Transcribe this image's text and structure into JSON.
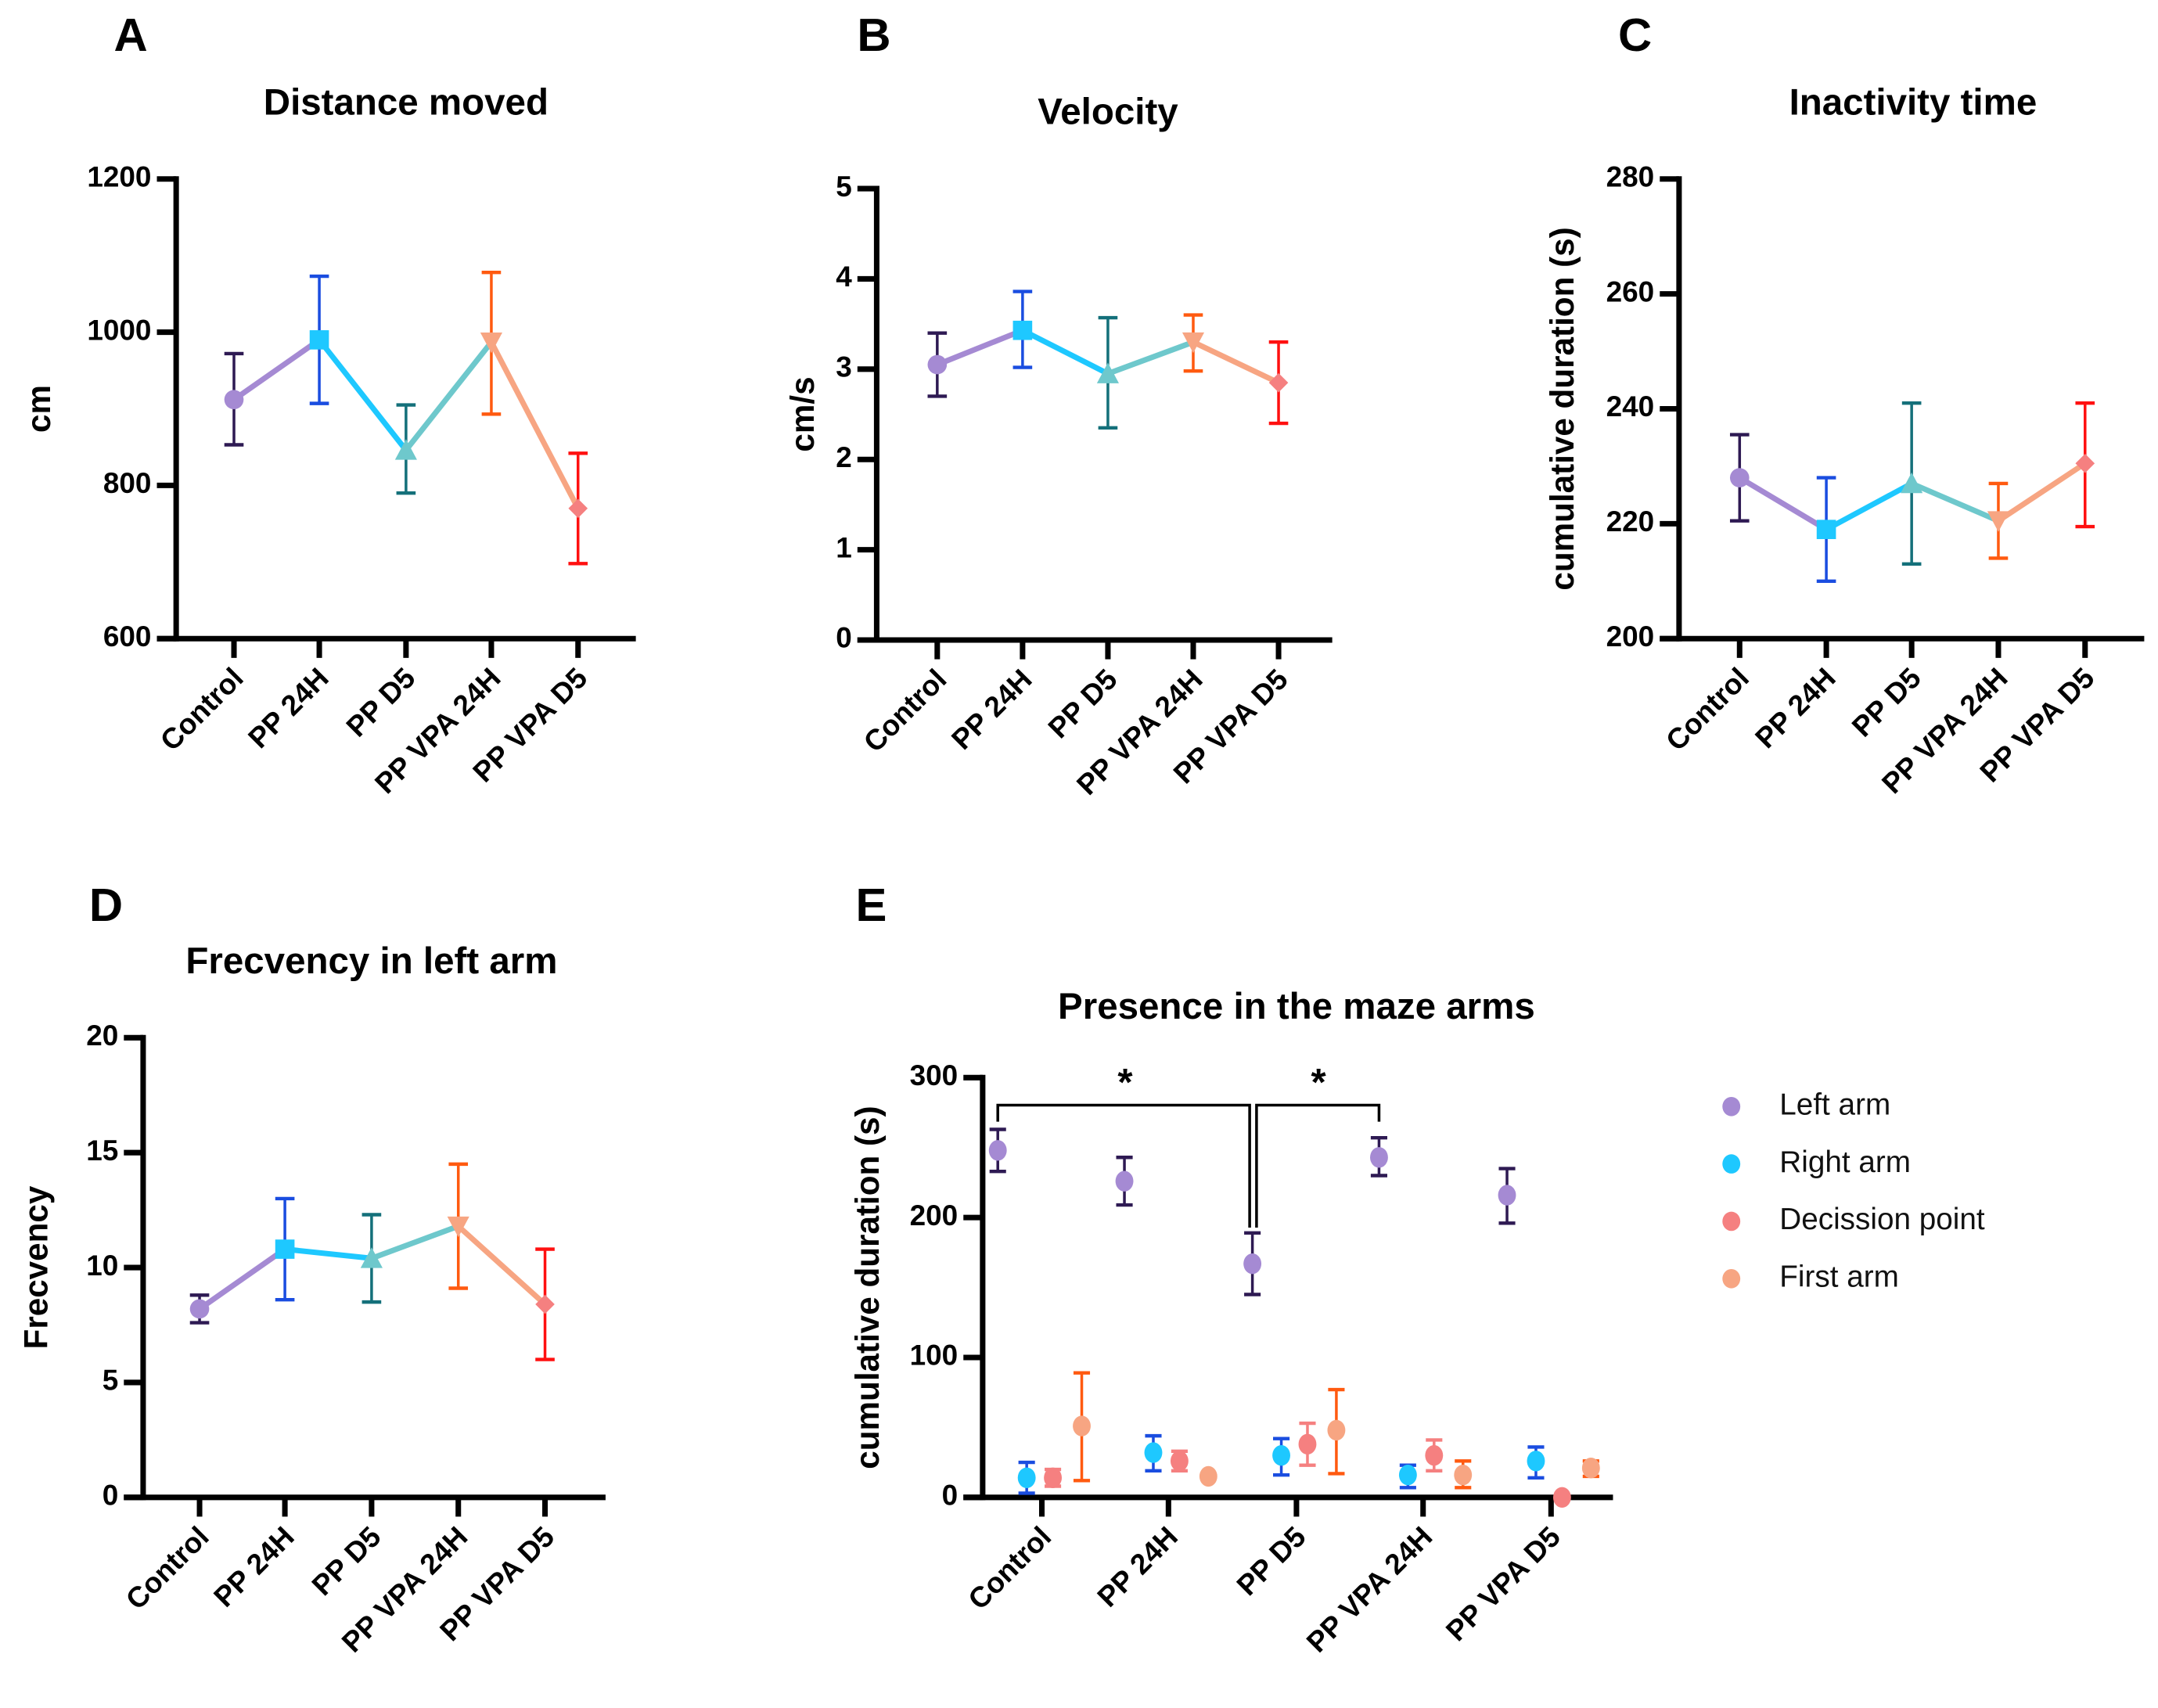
{
  "categories": [
    "Control",
    "PP 24H",
    "PP D5",
    "PP VPA 24H",
    "PP VPA D5"
  ],
  "group_colors": {
    "marker": [
      "#a58ad3",
      "#1ec8ff",
      "#6ec8cc",
      "#f7a582",
      "#f58080"
    ],
    "error": [
      "#2e1a53",
      "#1a4de0",
      "#14707a",
      "#ff5a10",
      "#ff1010"
    ]
  },
  "chart_data": [
    {
      "letter": "A",
      "type": "line",
      "title": "Distance moved",
      "ylabel": "cm",
      "ylim": [
        600,
        1200
      ],
      "yticks": [
        600,
        800,
        1000,
        1200
      ],
      "markers": [
        "circle",
        "square",
        "triangle-up",
        "triangle-down",
        "diamond"
      ],
      "values": [
        912,
        990,
        846,
        987,
        770
      ],
      "err_low": [
        853,
        907,
        790,
        893,
        698
      ],
      "err_high": [
        972,
        1073,
        905,
        1078,
        842
      ]
    },
    {
      "letter": "B",
      "type": "line",
      "title": "Velocity",
      "ylabel": "cm/s",
      "ylim": [
        0,
        5
      ],
      "yticks": [
        0,
        1,
        2,
        3,
        4,
        5
      ],
      "markers": [
        "circle",
        "square",
        "triangle-up",
        "triangle-down",
        "diamond"
      ],
      "values": [
        3.05,
        3.43,
        2.95,
        3.3,
        2.85
      ],
      "err_low": [
        2.7,
        3.02,
        2.35,
        2.98,
        2.4
      ],
      "err_high": [
        3.4,
        3.86,
        3.57,
        3.6,
        3.3
      ]
    },
    {
      "letter": "C",
      "type": "line",
      "title": "Inactivity time",
      "ylabel": "cumulative duration (s)",
      "ylim": [
        200,
        280
      ],
      "yticks": [
        200,
        220,
        240,
        260,
        280
      ],
      "markers": [
        "circle",
        "square",
        "triangle-up",
        "triangle-down",
        "diamond"
      ],
      "values": [
        228,
        219,
        227,
        220.5,
        230.5
      ],
      "err_low": [
        220.5,
        210,
        213,
        214,
        219.5
      ],
      "err_high": [
        235.5,
        228,
        241,
        227,
        241
      ]
    },
    {
      "letter": "D",
      "type": "line",
      "title": "Frecvency in left arm",
      "ylabel": "Frecvency",
      "ylim": [
        0,
        20
      ],
      "yticks": [
        0,
        5,
        10,
        15,
        20
      ],
      "markers": [
        "circle",
        "square",
        "triangle-up",
        "triangle-down",
        "diamond"
      ],
      "values": [
        8.2,
        10.8,
        10.4,
        11.8,
        8.4
      ],
      "err_low": [
        7.6,
        8.6,
        8.5,
        9.1,
        6.0
      ],
      "err_high": [
        8.8,
        13.0,
        12.3,
        14.5,
        10.8
      ]
    },
    {
      "letter": "E",
      "type": "scatter",
      "title": "Presence in the maze arms",
      "ylabel": "cumulative duration (s)",
      "ylim": [
        0,
        300
      ],
      "yticks": [
        0,
        100,
        200,
        300
      ],
      "legend": "right",
      "series": [
        {
          "name": "Left arm",
          "color": "#a58ad3",
          "error_color": "#2e1a53",
          "values": [
            248,
            226,
            167,
            243,
            216
          ],
          "err_low": [
            233,
            209,
            145,
            230,
            196
          ],
          "err_high": [
            263,
            243,
            189,
            257,
            235
          ]
        },
        {
          "name": "Right arm",
          "color": "#1ec8ff",
          "error_color": "#1a4de0",
          "values": [
            14,
            32,
            30,
            16,
            26
          ],
          "err_low": [
            3,
            19,
            16,
            7,
            14
          ],
          "err_high": [
            25,
            44,
            42,
            23,
            36
          ]
        },
        {
          "name": "Decission point",
          "color": "#f58080",
          "error_color": "#f58080",
          "values": [
            14,
            26,
            38,
            30,
            0
          ],
          "err_low": [
            8,
            19,
            23,
            19,
            0
          ],
          "err_high": [
            20,
            33,
            53,
            41,
            0
          ]
        },
        {
          "name": "First arm",
          "color": "#f7a582",
          "error_color": "#ff5a10",
          "values": [
            51,
            15,
            48,
            16,
            21
          ],
          "err_low": [
            12,
            15,
            17,
            7,
            15
          ],
          "err_high": [
            89,
            15,
            77,
            26,
            26
          ]
        }
      ],
      "significance": [
        {
          "from": "Control",
          "to": "PP D5",
          "label": "*"
        },
        {
          "from": "PP D5",
          "to": "PP VPA 24H",
          "label": "*"
        }
      ]
    }
  ]
}
